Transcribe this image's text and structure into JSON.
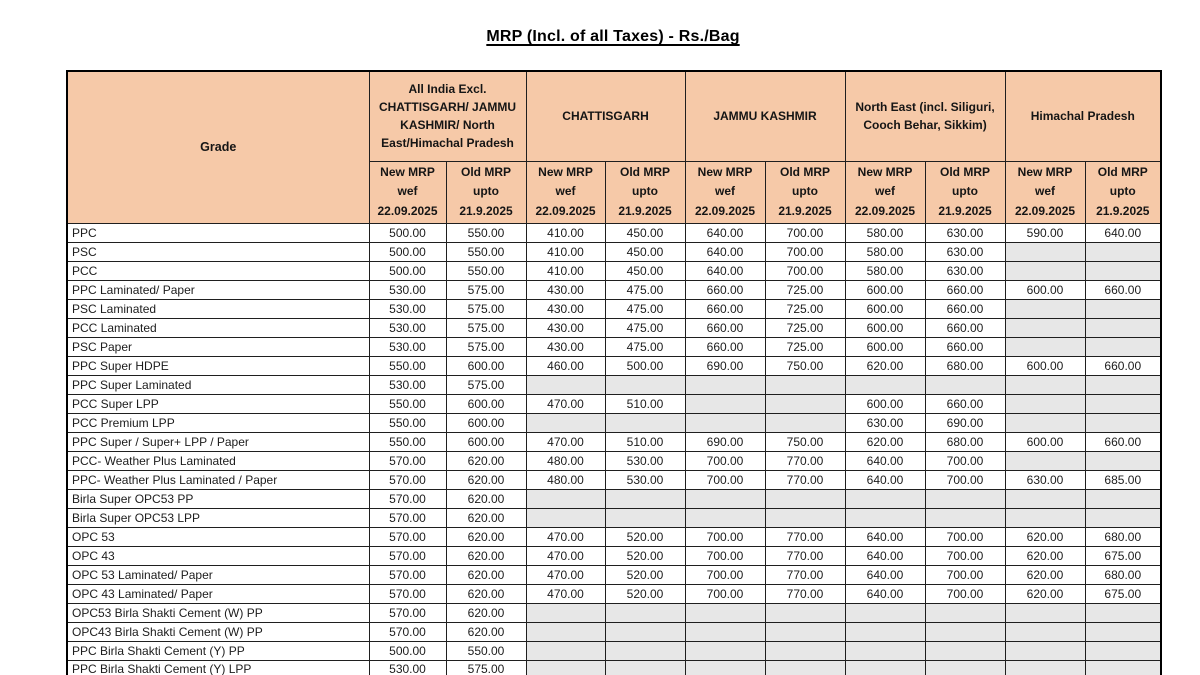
{
  "title": "MRP (Incl. of all Taxes) - Rs./Bag",
  "colors": {
    "header_bg": "#f6c9a8",
    "blank_cell_bg": "#e7e7e7",
    "border": "#1f1f1f",
    "text": "#1c1c1c"
  },
  "table": {
    "grade_header": "Grade",
    "regions": [
      {
        "label": "All India Excl. CHATTISGARH/ JAMMU KASHMIR/ North East/Himachal Pradesh"
      },
      {
        "label": "CHATTISGARH"
      },
      {
        "label": "JAMMU KASHMIR"
      },
      {
        "label": "North East (incl. Siliguri, Cooch Behar, Sikkim)"
      },
      {
        "label": "Himachal Pradesh"
      }
    ],
    "sub_new": "New MRP\nwef\n22.09.2025",
    "sub_old": "Old MRP\nupto\n21.9.2025",
    "rows": [
      {
        "grade": "PPC",
        "values": [
          "500.00",
          "550.00",
          "410.00",
          "450.00",
          "640.00",
          "700.00",
          "580.00",
          "630.00",
          "590.00",
          "640.00"
        ]
      },
      {
        "grade": "PSC",
        "values": [
          "500.00",
          "550.00",
          "410.00",
          "450.00",
          "640.00",
          "700.00",
          "580.00",
          "630.00",
          "",
          ""
        ]
      },
      {
        "grade": "PCC",
        "values": [
          "500.00",
          "550.00",
          "410.00",
          "450.00",
          "640.00",
          "700.00",
          "580.00",
          "630.00",
          "",
          ""
        ]
      },
      {
        "grade": "PPC Laminated/ Paper",
        "values": [
          "530.00",
          "575.00",
          "430.00",
          "475.00",
          "660.00",
          "725.00",
          "600.00",
          "660.00",
          "600.00",
          "660.00"
        ]
      },
      {
        "grade": "PSC Laminated",
        "values": [
          "530.00",
          "575.00",
          "430.00",
          "475.00",
          "660.00",
          "725.00",
          "600.00",
          "660.00",
          "",
          ""
        ]
      },
      {
        "grade": "PCC Laminated",
        "values": [
          "530.00",
          "575.00",
          "430.00",
          "475.00",
          "660.00",
          "725.00",
          "600.00",
          "660.00",
          "",
          ""
        ]
      },
      {
        "grade": "PSC Paper",
        "values": [
          "530.00",
          "575.00",
          "430.00",
          "475.00",
          "660.00",
          "725.00",
          "600.00",
          "660.00",
          "",
          ""
        ]
      },
      {
        "grade": "PPC Super HDPE",
        "values": [
          "550.00",
          "600.00",
          "460.00",
          "500.00",
          "690.00",
          "750.00",
          "620.00",
          "680.00",
          "600.00",
          "660.00"
        ]
      },
      {
        "grade": "PPC Super Laminated",
        "values": [
          "530.00",
          "575.00",
          "",
          "",
          "",
          "",
          "",
          "",
          "",
          ""
        ]
      },
      {
        "grade": "PCC Super LPP",
        "values": [
          "550.00",
          "600.00",
          "470.00",
          "510.00",
          "",
          "",
          "600.00",
          "660.00",
          "",
          ""
        ]
      },
      {
        "grade": "PCC Premium LPP",
        "values": [
          "550.00",
          "600.00",
          "",
          "",
          "",
          "",
          "630.00",
          "690.00",
          "",
          ""
        ]
      },
      {
        "grade": "PPC Super / Super+ LPP / Paper",
        "values": [
          "550.00",
          "600.00",
          "470.00",
          "510.00",
          "690.00",
          "750.00",
          "620.00",
          "680.00",
          "600.00",
          "660.00"
        ]
      },
      {
        "grade": "PCC- Weather Plus Laminated",
        "values": [
          "570.00",
          "620.00",
          "480.00",
          "530.00",
          "700.00",
          "770.00",
          "640.00",
          "700.00",
          "",
          ""
        ]
      },
      {
        "grade": "PPC- Weather Plus Laminated / Paper",
        "values": [
          "570.00",
          "620.00",
          "480.00",
          "530.00",
          "700.00",
          "770.00",
          "640.00",
          "700.00",
          "630.00",
          "685.00"
        ]
      },
      {
        "grade": "Birla Super OPC53 PP",
        "values": [
          "570.00",
          "620.00",
          "",
          "",
          "",
          "",
          "",
          "",
          "",
          ""
        ]
      },
      {
        "grade": "Birla Super OPC53 LPP",
        "values": [
          "570.00",
          "620.00",
          "",
          "",
          "",
          "",
          "",
          "",
          "",
          ""
        ]
      },
      {
        "grade": "OPC 53",
        "values": [
          "570.00",
          "620.00",
          "470.00",
          "520.00",
          "700.00",
          "770.00",
          "640.00",
          "700.00",
          "620.00",
          "680.00"
        ]
      },
      {
        "grade": "OPC 43",
        "values": [
          "570.00",
          "620.00",
          "470.00",
          "520.00",
          "700.00",
          "770.00",
          "640.00",
          "700.00",
          "620.00",
          "675.00"
        ]
      },
      {
        "grade": "OPC 53 Laminated/ Paper",
        "values": [
          "570.00",
          "620.00",
          "470.00",
          "520.00",
          "700.00",
          "770.00",
          "640.00",
          "700.00",
          "620.00",
          "680.00"
        ]
      },
      {
        "grade": "OPC 43 Laminated/ Paper",
        "values": [
          "570.00",
          "620.00",
          "470.00",
          "520.00",
          "700.00",
          "770.00",
          "640.00",
          "700.00",
          "620.00",
          "675.00"
        ]
      },
      {
        "grade": "OPC53 Birla Shakti Cement (W) PP",
        "values": [
          "570.00",
          "620.00",
          "",
          "",
          "",
          "",
          "",
          "",
          "",
          ""
        ]
      },
      {
        "grade": "OPC43 Birla Shakti Cement (W) PP",
        "values": [
          "570.00",
          "620.00",
          "",
          "",
          "",
          "",
          "",
          "",
          "",
          ""
        ]
      },
      {
        "grade": "PPC Birla Shakti Cement (Y) PP",
        "values": [
          "500.00",
          "550.00",
          "",
          "",
          "",
          "",
          "",
          "",
          "",
          ""
        ]
      },
      {
        "grade": "PPC Birla Shakti Cement (Y) LPP",
        "values": [
          "530.00",
          "575.00",
          "",
          "",
          "",
          "",
          "",
          "",
          "",
          ""
        ]
      }
    ]
  }
}
